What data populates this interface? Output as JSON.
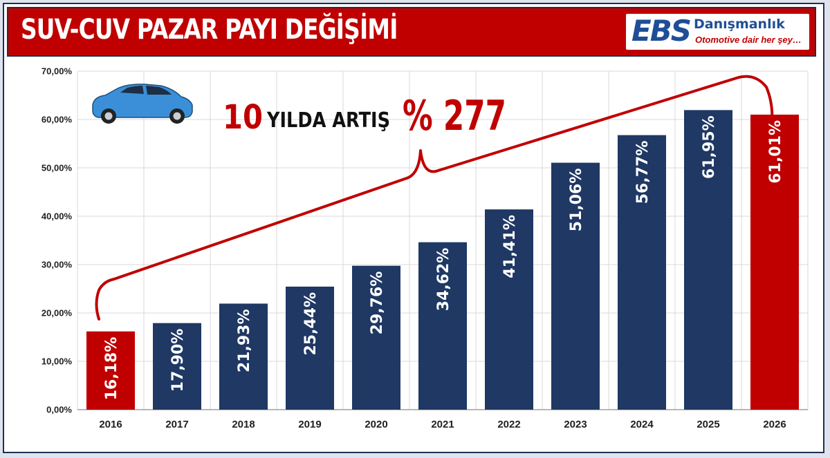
{
  "header": {
    "title": "SUV-CUV PAZAR PAYI DEĞİŞİMİ",
    "logo_mark": "EBS",
    "logo_name": "Danışmanlık",
    "logo_slogan": "Otomotive dair her şey…"
  },
  "annotation": {
    "number": "10",
    "text": "YILDA ARTIŞ",
    "percent": "% 277",
    "icon": "car-icon"
  },
  "colors": {
    "header_bg": "#c00000",
    "bar_default": "#1f3864",
    "bar_highlight": "#c00000",
    "bracket": "#c00000"
  },
  "chart_data": {
    "type": "bar",
    "categories": [
      "2016",
      "2017",
      "2018",
      "2019",
      "2020",
      "2021",
      "2022",
      "2023",
      "2024",
      "2025",
      "2026"
    ],
    "values": [
      16.18,
      17.9,
      21.93,
      25.44,
      29.76,
      34.62,
      41.41,
      51.06,
      56.77,
      61.95,
      61.01
    ],
    "data_labels": [
      "16,18%",
      "17,90%",
      "21,93%",
      "25,44%",
      "29,76%",
      "34,62%",
      "41,41%",
      "51,06%",
      "56,77%",
      "61,95%",
      "61,01%"
    ],
    "highlighted": [
      "2016",
      "2026"
    ],
    "y_ticks": [
      0,
      10,
      20,
      30,
      40,
      50,
      60,
      70
    ],
    "y_tick_labels": [
      "0,00%",
      "10,00%",
      "20,00%",
      "30,00%",
      "40,00%",
      "50,00%",
      "60,00%",
      "70,00%"
    ],
    "ylim": [
      0,
      70
    ],
    "title": "SUV-CUV PAZAR PAYI DEĞİŞİMİ",
    "xlabel": "",
    "ylabel": "",
    "grid": true,
    "data_label_orientation": "vertical"
  }
}
